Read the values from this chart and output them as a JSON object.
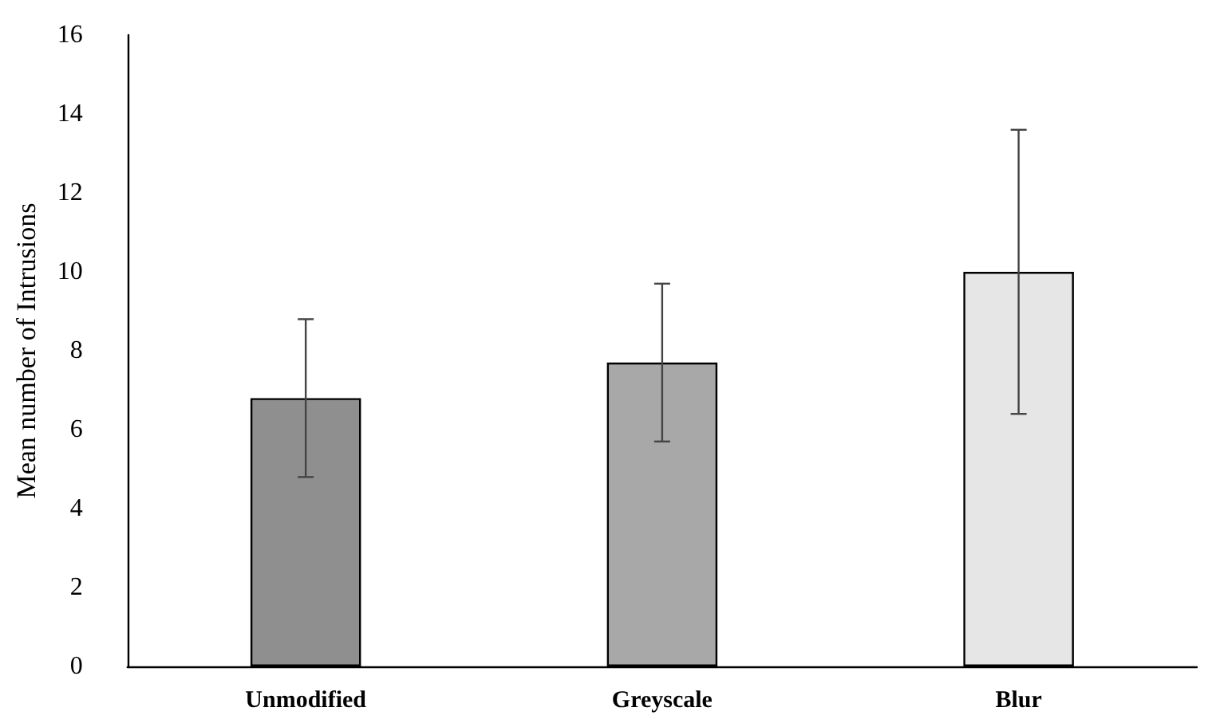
{
  "chart_data": {
    "type": "bar",
    "ylabel": "Mean number of Intrusions",
    "categories": [
      "Unmodified",
      "Greyscale",
      "Blur"
    ],
    "values": [
      6.8,
      7.7,
      10.0
    ],
    "errors": [
      2.0,
      2.0,
      3.6
    ],
    "colors": [
      "#8f8f8f",
      "#a8a8a8",
      "#e6e6e6"
    ],
    "ylim": [
      0,
      16
    ],
    "yticks": [
      0,
      2,
      4,
      6,
      8,
      10,
      12,
      14,
      16
    ],
    "grid": false
  }
}
